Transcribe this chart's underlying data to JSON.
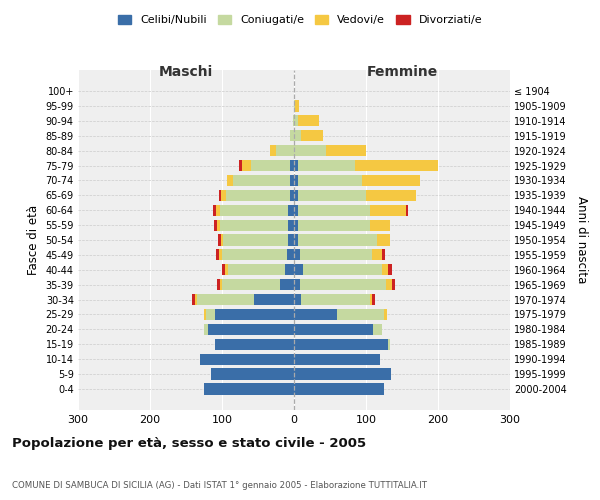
{
  "age_groups": [
    "100+",
    "95-99",
    "90-94",
    "85-89",
    "80-84",
    "75-79",
    "70-74",
    "65-69",
    "60-64",
    "55-59",
    "50-54",
    "45-49",
    "40-44",
    "35-39",
    "30-34",
    "25-29",
    "20-24",
    "15-19",
    "10-14",
    "5-9",
    "0-4"
  ],
  "birth_years": [
    "≤ 1904",
    "1905-1909",
    "1910-1914",
    "1915-1919",
    "1920-1924",
    "1925-1929",
    "1930-1934",
    "1935-1939",
    "1940-1944",
    "1945-1949",
    "1950-1954",
    "1955-1959",
    "1960-1964",
    "1965-1969",
    "1970-1974",
    "1975-1979",
    "1980-1984",
    "1985-1989",
    "1990-1994",
    "1995-1999",
    "2000-2004"
  ],
  "maschi": {
    "celibe": [
      0,
      0,
      0,
      0,
      0,
      5,
      5,
      5,
      8,
      8,
      8,
      10,
      12,
      20,
      55,
      110,
      120,
      110,
      130,
      115,
      125
    ],
    "coniugato": [
      0,
      0,
      2,
      5,
      25,
      55,
      80,
      90,
      95,
      95,
      90,
      90,
      80,
      80,
      80,
      12,
      5,
      0,
      0,
      0,
      0
    ],
    "vedovo": [
      0,
      0,
      0,
      0,
      8,
      12,
      8,
      6,
      5,
      4,
      4,
      4,
      4,
      3,
      3,
      3,
      0,
      0,
      0,
      0,
      0
    ],
    "divorziato": [
      0,
      0,
      0,
      0,
      0,
      5,
      0,
      3,
      4,
      4,
      4,
      4,
      4,
      4,
      4,
      0,
      0,
      0,
      0,
      0,
      0
    ]
  },
  "femmine": {
    "nubile": [
      0,
      0,
      0,
      0,
      0,
      5,
      5,
      5,
      5,
      5,
      5,
      8,
      12,
      8,
      10,
      60,
      110,
      130,
      120,
      135,
      125
    ],
    "coniugata": [
      0,
      2,
      5,
      10,
      45,
      80,
      90,
      95,
      100,
      100,
      110,
      100,
      110,
      120,
      95,
      65,
      12,
      4,
      0,
      0,
      0
    ],
    "vedova": [
      0,
      5,
      30,
      30,
      55,
      115,
      80,
      70,
      50,
      28,
      18,
      14,
      8,
      8,
      4,
      4,
      0,
      0,
      0,
      0,
      0
    ],
    "divorziata": [
      0,
      0,
      0,
      0,
      0,
      0,
      0,
      0,
      4,
      0,
      0,
      4,
      6,
      4,
      4,
      0,
      0,
      0,
      0,
      0,
      0
    ]
  },
  "colors": {
    "celibe": "#3a6ea8",
    "coniugato": "#c5d9a0",
    "vedovo": "#f5c842",
    "divorziato": "#cc2222"
  },
  "legend_labels": [
    "Celibi/Nubili",
    "Coniugati/e",
    "Vedovi/e",
    "Divorziati/e"
  ],
  "title": "Popolazione per età, sesso e stato civile - 2005",
  "subtitle": "COMUNE DI SAMBUCA DI SICILIA (AG) - Dati ISTAT 1° gennaio 2005 - Elaborazione TUTTITALIA.IT",
  "xlabel_left": "Maschi",
  "xlabel_right": "Femmine",
  "ylabel_left": "Fasce di età",
  "ylabel_right": "Anni di nascita",
  "xlim": 300,
  "bg_color": "#ffffff",
  "plot_bg_color": "#efefef"
}
